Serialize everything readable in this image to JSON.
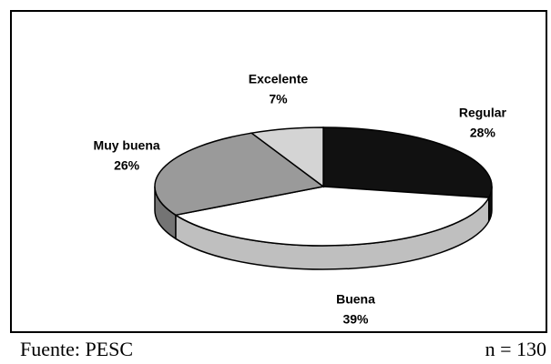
{
  "chart_data": {
    "type": "pie",
    "categories": [
      "Regular",
      "Buena",
      "Muy buena",
      "Excelente"
    ],
    "values": [
      28,
      39,
      26,
      7
    ],
    "value_labels": [
      "28%",
      "39%",
      "26%",
      "7%"
    ],
    "colors": [
      "#111111",
      "#ffffff",
      "#9a9a9a",
      "#d4d4d4"
    ],
    "source": "Fuente: PESC",
    "note": "n = 130"
  }
}
